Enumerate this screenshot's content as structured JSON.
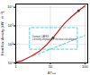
{
  "chart_data": {
    "type": "line",
    "xlabel": "ΔTₛₐₜ",
    "ylabel": "Heat flux density (kW · m⁻²)",
    "log": true,
    "grid": true,
    "xlim": [
      1,
      120
    ],
    "ylim": [
      10,
      15000
    ],
    "xticks": [
      1,
      10,
      100
    ],
    "yticks": [
      {
        "value": 10,
        "label": "10¹"
      },
      {
        "value": 100,
        "label": "10²"
      },
      {
        "value": 1000,
        "label": "10³"
      },
      {
        "value": 10000,
        "label": "10⁴"
      }
    ],
    "series": [
      {
        "type": "line",
        "x": [
          1,
          1.5,
          2,
          3,
          5,
          8,
          12,
          18,
          25,
          40,
          65,
          100
        ],
        "values": [
          11,
          13,
          17,
          25,
          45,
          100,
          230,
          600,
          1300,
          3000,
          6500,
          12000
        ],
        "color": "#dd1111",
        "line_style": "solid"
      },
      {
        "type": "line",
        "x": [
          2.5,
          60,
          60,
          2.5,
          2.5
        ],
        "values": [
          55,
          55,
          800,
          800,
          55
        ],
        "color": "#22cccc",
        "line_style": "dashed"
      },
      {
        "type": "line",
        "x": [
          2.5,
          100
        ],
        "values": [
          20,
          300
        ],
        "color": "#22cccc",
        "line_style": "dashed"
      },
      {
        "type": "scatter",
        "x": [
          12
        ],
        "values": [
          230
        ],
        "color": "#444444",
        "marker": "circle"
      },
      {
        "type": "scatter",
        "x": [
          65
        ],
        "values": [
          6500
        ],
        "color": "#444444",
        "marker": "circle"
      }
    ],
    "annotations": [
      {
        "x": 3,
        "y": 220,
        "text": "Domain CAFES\ncurrently employed in the heat calculations",
        "color": "#333333"
      }
    ]
  }
}
